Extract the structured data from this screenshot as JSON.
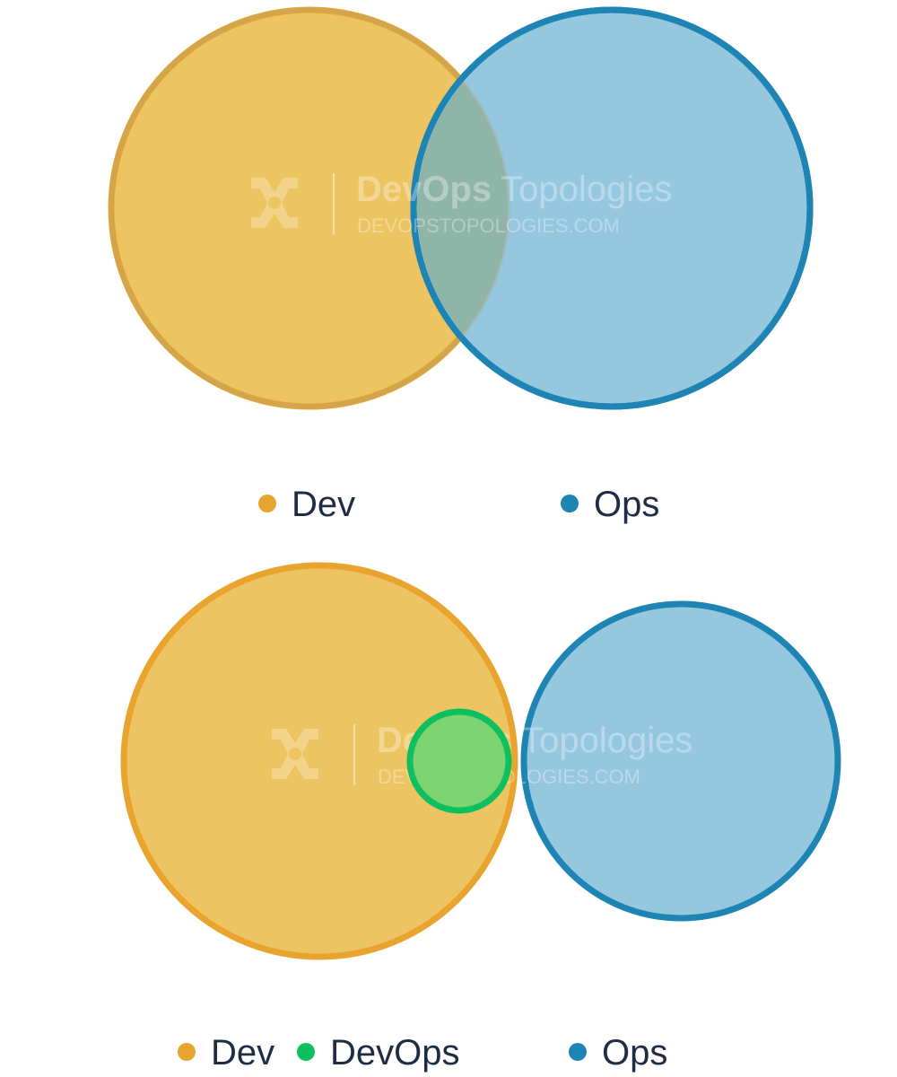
{
  "colors": {
    "dev_fill": "#edc462",
    "dev_stroke": "#e8a42f",
    "ops_fill": "#95c7df",
    "ops_stroke": "#1e84b3",
    "overlap_fill": "#8fb5a9",
    "devops_fill": "#7cd371",
    "devops_stroke": "#0dbf5e",
    "legend_text": "#1f2d44"
  },
  "diagrams": [
    {
      "id": "top",
      "legend": [
        {
          "label": "Dev",
          "color": "#e8a42f"
        },
        {
          "label": "Ops",
          "color": "#1e84b3"
        }
      ],
      "watermark": {
        "brand_bold": "DevOps",
        "brand_light": "Topologies",
        "url": "DEVOPSTOPOLOGIES.COM",
        "icon": "devops-topologies-logo-icon"
      }
    },
    {
      "id": "bottom",
      "legend": [
        {
          "label": "Dev",
          "color": "#e8a42f"
        },
        {
          "label": "DevOps",
          "color": "#0dbf5e"
        },
        {
          "label": "Ops",
          "color": "#1e84b3"
        }
      ],
      "watermark": {
        "brand_bold": "DevOps",
        "brand_light": "Topologies",
        "url": "DEVOPSTOPOLOGIES.COM",
        "icon": "devops-topologies-logo-icon"
      }
    }
  ]
}
